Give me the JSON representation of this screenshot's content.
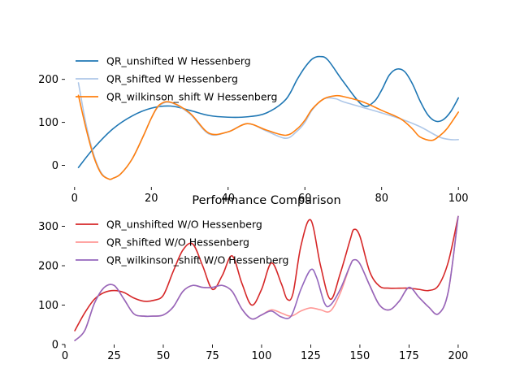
{
  "title": "Performance Comparison",
  "chart_data": [
    {
      "type": "line",
      "title": "",
      "xlabel": "",
      "ylabel": "",
      "xlim": [
        -2.5,
        102.5
      ],
      "ylim": [
        -50,
        275
      ],
      "xticks": [
        0,
        20,
        40,
        60,
        80,
        100
      ],
      "yticks": [
        0,
        100,
        200
      ],
      "grid": false,
      "legend_position": "top-left",
      "series": [
        {
          "name": "QR_unshifted W Hessenberg",
          "color": "#1f77b4",
          "x": [
            1,
            5,
            10,
            15,
            20,
            25,
            30,
            35,
            40,
            45,
            50,
            55,
            58,
            60,
            62,
            64,
            66,
            70,
            75,
            78,
            80,
            82,
            84,
            86,
            88,
            90,
            92,
            94,
            96,
            98,
            100
          ],
          "y": [
            -5,
            40,
            85,
            115,
            133,
            138,
            128,
            116,
            112,
            113,
            122,
            153,
            200,
            228,
            248,
            253,
            245,
            195,
            140,
            148,
            175,
            210,
            224,
            218,
            190,
            150,
            118,
            103,
            106,
            125,
            157
          ]
        },
        {
          "name": "QR_shifted W Hessenberg",
          "color": "#aec7e8",
          "x": [
            1,
            3,
            5,
            7,
            9,
            10,
            12,
            15,
            18,
            20,
            22,
            25,
            30,
            35,
            40,
            45,
            50,
            55,
            58,
            60,
            62,
            65,
            68,
            70,
            75,
            80,
            85,
            90,
            95,
            98,
            100
          ],
          "y": [
            192,
            95,
            25,
            -18,
            -32,
            -30,
            -20,
            15,
            70,
            110,
            138,
            146,
            120,
            73,
            78,
            97,
            80,
            63,
            80,
            100,
            130,
            155,
            155,
            148,
            135,
            122,
            108,
            90,
            66,
            60,
            60
          ]
        },
        {
          "name": "QR_wilkinson_shift W Hessenberg",
          "color": "#ff7f0e",
          "x": [
            1,
            3,
            5,
            7,
            9,
            10,
            12,
            15,
            18,
            20,
            22,
            25,
            30,
            35,
            40,
            45,
            50,
            55,
            58,
            60,
            62,
            65,
            68,
            70,
            75,
            80,
            85,
            88,
            90,
            93,
            95,
            97,
            100
          ],
          "y": [
            163,
            85,
            20,
            -20,
            -32,
            -30,
            -20,
            15,
            70,
            110,
            140,
            147,
            122,
            75,
            78,
            97,
            82,
            70,
            85,
            105,
            132,
            155,
            162,
            160,
            148,
            128,
            108,
            85,
            66,
            58,
            68,
            85,
            124
          ]
        }
      ]
    },
    {
      "type": "line",
      "title": "",
      "xlabel": "",
      "ylabel": "",
      "xlim": [
        0,
        205
      ],
      "ylim": [
        0,
        330
      ],
      "xticks": [
        0,
        25,
        50,
        75,
        100,
        125,
        150,
        175,
        200
      ],
      "yticks": [
        0,
        100,
        200,
        300
      ],
      "grid": false,
      "legend_position": "top-left",
      "series": [
        {
          "name": "QR_unshifted W/O Hessenberg",
          "color": "#d62728",
          "x": [
            5,
            10,
            15,
            20,
            25,
            30,
            35,
            40,
            45,
            50,
            55,
            60,
            65,
            70,
            75,
            80,
            85,
            90,
            95,
            100,
            105,
            110,
            113,
            116,
            120,
            125,
            130,
            135,
            140,
            145,
            147,
            150,
            155,
            160,
            165,
            170,
            175,
            180,
            185,
            190,
            195,
            200
          ],
          "y": [
            35,
            80,
            115,
            132,
            137,
            132,
            118,
            110,
            112,
            125,
            185,
            240,
            255,
            200,
            140,
            175,
            225,
            155,
            100,
            140,
            207,
            155,
            115,
            130,
            250,
            316,
            200,
            115,
            180,
            265,
            292,
            275,
            185,
            148,
            143,
            143,
            143,
            140,
            137,
            150,
            210,
            325
          ]
        },
        {
          "name": "QR_shifted W/O Hessenberg",
          "color": "#ff9896",
          "x": [
            5,
            10,
            15,
            20,
            25,
            30,
            35,
            40,
            45,
            50,
            55,
            60,
            65,
            70,
            75,
            80,
            85,
            90,
            95,
            100,
            105,
            110,
            115,
            120,
            125,
            130,
            135,
            140,
            145,
            147,
            150,
            155,
            160,
            165,
            170,
            175,
            180,
            185,
            190,
            195,
            200
          ],
          "y": [
            10,
            35,
            105,
            145,
            150,
            115,
            78,
            72,
            72,
            75,
            95,
            135,
            150,
            145,
            145,
            150,
            135,
            90,
            65,
            75,
            88,
            80,
            72,
            85,
            93,
            88,
            85,
            130,
            200,
            215,
            205,
            150,
            100,
            88,
            110,
            145,
            120,
            95,
            78,
            135,
            325
          ]
        },
        {
          "name": "QR_wilkinson_shift W/O Hessenberg",
          "color": "#9467bd",
          "x": [
            5,
            10,
            15,
            20,
            25,
            30,
            35,
            40,
            45,
            50,
            55,
            60,
            65,
            70,
            75,
            80,
            85,
            90,
            95,
            100,
            105,
            110,
            115,
            120,
            125,
            128,
            132,
            135,
            140,
            145,
            147,
            150,
            155,
            160,
            165,
            170,
            175,
            180,
            185,
            190,
            195,
            200
          ],
          "y": [
            10,
            35,
            105,
            145,
            150,
            115,
            78,
            72,
            72,
            75,
            95,
            135,
            150,
            145,
            145,
            150,
            135,
            90,
            65,
            75,
            85,
            70,
            72,
            140,
            190,
            170,
            105,
            100,
            140,
            200,
            215,
            205,
            150,
            100,
            88,
            110,
            145,
            120,
            95,
            78,
            135,
            325
          ]
        }
      ]
    }
  ]
}
